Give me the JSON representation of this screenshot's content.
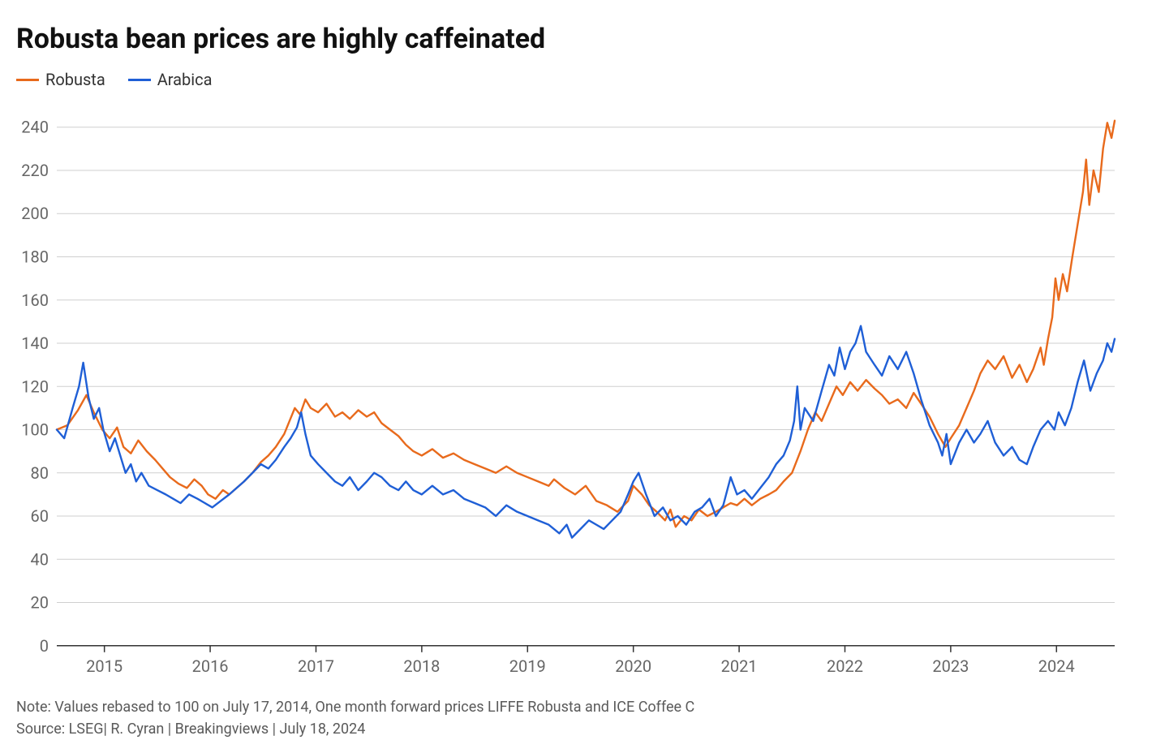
{
  "title": "Robusta bean prices are highly caffeinated",
  "note": "Note: Values rebased to 100 on July 17, 2014, One month forward prices LIFFE Robusta and ICE Coffee C",
  "source": "Source: LSEG| R. Cyran | Breakingviews | July 18, 2024",
  "chart": {
    "type": "line",
    "background_color": "#ffffff",
    "grid_color": "#cfcfcf",
    "axis_color": "#333333",
    "tick_label_color": "#666666",
    "tick_fontsize": 20,
    "title_fontsize": 34,
    "line_width": 2.4,
    "x": {
      "min": 2014.55,
      "max": 2024.55,
      "ticks": [
        2015,
        2016,
        2017,
        2018,
        2019,
        2020,
        2021,
        2022,
        2023,
        2024
      ],
      "tick_labels": [
        "2015",
        "2016",
        "2017",
        "2018",
        "2019",
        "2020",
        "2021",
        "2022",
        "2023",
        "2024"
      ]
    },
    "y": {
      "min": 0,
      "max": 250,
      "ticks": [
        0,
        20,
        40,
        60,
        80,
        100,
        120,
        140,
        160,
        180,
        200,
        220,
        240
      ],
      "tick_labels": [
        "0",
        "20",
        "40",
        "60",
        "80",
        "100",
        "120",
        "140",
        "160",
        "180",
        "200",
        "220",
        "240"
      ]
    },
    "legend": [
      {
        "label": "Robusta",
        "color": "#e86a1c"
      },
      {
        "label": "Arabica",
        "color": "#1f5fd6"
      }
    ],
    "series": [
      {
        "name": "Robusta",
        "color": "#e86a1c",
        "points": [
          [
            2014.55,
            100
          ],
          [
            2014.65,
            102
          ],
          [
            2014.75,
            109
          ],
          [
            2014.83,
            116
          ],
          [
            2014.9,
            108
          ],
          [
            2014.98,
            100
          ],
          [
            2015.05,
            96
          ],
          [
            2015.12,
            101
          ],
          [
            2015.18,
            92
          ],
          [
            2015.25,
            89
          ],
          [
            2015.32,
            95
          ],
          [
            2015.4,
            90
          ],
          [
            2015.48,
            86
          ],
          [
            2015.55,
            82
          ],
          [
            2015.62,
            78
          ],
          [
            2015.7,
            75
          ],
          [
            2015.78,
            73
          ],
          [
            2015.85,
            77
          ],
          [
            2015.92,
            74
          ],
          [
            2015.98,
            70
          ],
          [
            2016.05,
            68
          ],
          [
            2016.12,
            72
          ],
          [
            2016.18,
            70
          ],
          [
            2016.25,
            73
          ],
          [
            2016.32,
            76
          ],
          [
            2016.4,
            80
          ],
          [
            2016.48,
            85
          ],
          [
            2016.55,
            88
          ],
          [
            2016.62,
            92
          ],
          [
            2016.7,
            98
          ],
          [
            2016.75,
            104
          ],
          [
            2016.8,
            110
          ],
          [
            2016.85,
            107
          ],
          [
            2016.9,
            114
          ],
          [
            2016.95,
            110
          ],
          [
            2017.02,
            108
          ],
          [
            2017.1,
            112
          ],
          [
            2017.18,
            106
          ],
          [
            2017.25,
            108
          ],
          [
            2017.32,
            105
          ],
          [
            2017.4,
            109
          ],
          [
            2017.48,
            106
          ],
          [
            2017.55,
            108
          ],
          [
            2017.62,
            103
          ],
          [
            2017.7,
            100
          ],
          [
            2017.78,
            97
          ],
          [
            2017.85,
            93
          ],
          [
            2017.92,
            90
          ],
          [
            2018.0,
            88
          ],
          [
            2018.1,
            91
          ],
          [
            2018.2,
            87
          ],
          [
            2018.3,
            89
          ],
          [
            2018.4,
            86
          ],
          [
            2018.5,
            84
          ],
          [
            2018.6,
            82
          ],
          [
            2018.7,
            80
          ],
          [
            2018.8,
            83
          ],
          [
            2018.9,
            80
          ],
          [
            2019.0,
            78
          ],
          [
            2019.1,
            76
          ],
          [
            2019.2,
            74
          ],
          [
            2019.25,
            77
          ],
          [
            2019.35,
            73
          ],
          [
            2019.45,
            70
          ],
          [
            2019.55,
            74
          ],
          [
            2019.65,
            67
          ],
          [
            2019.75,
            65
          ],
          [
            2019.85,
            62
          ],
          [
            2019.95,
            67
          ],
          [
            2020.0,
            74
          ],
          [
            2020.08,
            70
          ],
          [
            2020.15,
            65
          ],
          [
            2020.22,
            62
          ],
          [
            2020.3,
            58
          ],
          [
            2020.35,
            63
          ],
          [
            2020.4,
            55
          ],
          [
            2020.48,
            60
          ],
          [
            2020.55,
            58
          ],
          [
            2020.62,
            63
          ],
          [
            2020.7,
            60
          ],
          [
            2020.78,
            62
          ],
          [
            2020.85,
            64
          ],
          [
            2020.92,
            66
          ],
          [
            2020.98,
            65
          ],
          [
            2021.05,
            68
          ],
          [
            2021.12,
            65
          ],
          [
            2021.2,
            68
          ],
          [
            2021.28,
            70
          ],
          [
            2021.35,
            72
          ],
          [
            2021.42,
            76
          ],
          [
            2021.5,
            80
          ],
          [
            2021.58,
            90
          ],
          [
            2021.65,
            100
          ],
          [
            2021.72,
            108
          ],
          [
            2021.78,
            104
          ],
          [
            2021.85,
            112
          ],
          [
            2021.92,
            120
          ],
          [
            2021.98,
            116
          ],
          [
            2022.05,
            122
          ],
          [
            2022.12,
            118
          ],
          [
            2022.2,
            123
          ],
          [
            2022.28,
            119
          ],
          [
            2022.35,
            116
          ],
          [
            2022.42,
            112
          ],
          [
            2022.5,
            114
          ],
          [
            2022.58,
            110
          ],
          [
            2022.65,
            117
          ],
          [
            2022.72,
            112
          ],
          [
            2022.8,
            106
          ],
          [
            2022.88,
            98
          ],
          [
            2022.95,
            92
          ],
          [
            2023.0,
            96
          ],
          [
            2023.08,
            102
          ],
          [
            2023.15,
            110
          ],
          [
            2023.22,
            118
          ],
          [
            2023.28,
            126
          ],
          [
            2023.35,
            132
          ],
          [
            2023.42,
            128
          ],
          [
            2023.5,
            134
          ],
          [
            2023.58,
            124
          ],
          [
            2023.65,
            130
          ],
          [
            2023.72,
            122
          ],
          [
            2023.78,
            128
          ],
          [
            2023.85,
            138
          ],
          [
            2023.88,
            130
          ],
          [
            2023.92,
            142
          ],
          [
            2023.96,
            152
          ],
          [
            2023.99,
            170
          ],
          [
            2024.02,
            160
          ],
          [
            2024.06,
            172
          ],
          [
            2024.1,
            164
          ],
          [
            2024.15,
            180
          ],
          [
            2024.2,
            195
          ],
          [
            2024.25,
            210
          ],
          [
            2024.28,
            225
          ],
          [
            2024.31,
            204
          ],
          [
            2024.35,
            220
          ],
          [
            2024.4,
            210
          ],
          [
            2024.44,
            230
          ],
          [
            2024.48,
            242
          ],
          [
            2024.52,
            235
          ],
          [
            2024.55,
            243
          ]
        ]
      },
      {
        "name": "Arabica",
        "color": "#1f5fd6",
        "points": [
          [
            2014.55,
            100
          ],
          [
            2014.62,
            96
          ],
          [
            2014.7,
            110
          ],
          [
            2014.76,
            120
          ],
          [
            2014.8,
            131
          ],
          [
            2014.85,
            115
          ],
          [
            2014.9,
            105
          ],
          [
            2014.95,
            110
          ],
          [
            2014.99,
            100
          ],
          [
            2015.05,
            90
          ],
          [
            2015.1,
            96
          ],
          [
            2015.15,
            88
          ],
          [
            2015.2,
            80
          ],
          [
            2015.25,
            84
          ],
          [
            2015.3,
            76
          ],
          [
            2015.35,
            80
          ],
          [
            2015.42,
            74
          ],
          [
            2015.5,
            72
          ],
          [
            2015.58,
            70
          ],
          [
            2015.65,
            68
          ],
          [
            2015.72,
            66
          ],
          [
            2015.8,
            70
          ],
          [
            2015.88,
            68
          ],
          [
            2015.95,
            66
          ],
          [
            2016.02,
            64
          ],
          [
            2016.1,
            67
          ],
          [
            2016.18,
            70
          ],
          [
            2016.25,
            73
          ],
          [
            2016.32,
            76
          ],
          [
            2016.4,
            80
          ],
          [
            2016.48,
            84
          ],
          [
            2016.55,
            82
          ],
          [
            2016.62,
            86
          ],
          [
            2016.7,
            92
          ],
          [
            2016.76,
            96
          ],
          [
            2016.82,
            101
          ],
          [
            2016.86,
            108
          ],
          [
            2016.9,
            98
          ],
          [
            2016.95,
            88
          ],
          [
            2017.02,
            84
          ],
          [
            2017.1,
            80
          ],
          [
            2017.18,
            76
          ],
          [
            2017.25,
            74
          ],
          [
            2017.32,
            78
          ],
          [
            2017.4,
            72
          ],
          [
            2017.48,
            76
          ],
          [
            2017.55,
            80
          ],
          [
            2017.62,
            78
          ],
          [
            2017.7,
            74
          ],
          [
            2017.78,
            72
          ],
          [
            2017.85,
            76
          ],
          [
            2017.92,
            72
          ],
          [
            2018.0,
            70
          ],
          [
            2018.1,
            74
          ],
          [
            2018.2,
            70
          ],
          [
            2018.3,
            72
          ],
          [
            2018.4,
            68
          ],
          [
            2018.5,
            66
          ],
          [
            2018.6,
            64
          ],
          [
            2018.7,
            60
          ],
          [
            2018.8,
            65
          ],
          [
            2018.9,
            62
          ],
          [
            2019.0,
            60
          ],
          [
            2019.1,
            58
          ],
          [
            2019.2,
            56
          ],
          [
            2019.3,
            52
          ],
          [
            2019.37,
            56
          ],
          [
            2019.42,
            50
          ],
          [
            2019.5,
            54
          ],
          [
            2019.58,
            58
          ],
          [
            2019.65,
            56
          ],
          [
            2019.72,
            54
          ],
          [
            2019.8,
            58
          ],
          [
            2019.88,
            62
          ],
          [
            2019.95,
            70
          ],
          [
            2020.0,
            76
          ],
          [
            2020.05,
            80
          ],
          [
            2020.12,
            70
          ],
          [
            2020.2,
            60
          ],
          [
            2020.28,
            64
          ],
          [
            2020.35,
            58
          ],
          [
            2020.42,
            60
          ],
          [
            2020.5,
            56
          ],
          [
            2020.58,
            62
          ],
          [
            2020.65,
            64
          ],
          [
            2020.72,
            68
          ],
          [
            2020.78,
            60
          ],
          [
            2020.85,
            65
          ],
          [
            2020.92,
            78
          ],
          [
            2020.98,
            70
          ],
          [
            2021.05,
            72
          ],
          [
            2021.12,
            68
          ],
          [
            2021.2,
            73
          ],
          [
            2021.28,
            78
          ],
          [
            2021.35,
            84
          ],
          [
            2021.42,
            88
          ],
          [
            2021.48,
            95
          ],
          [
            2021.52,
            104
          ],
          [
            2021.55,
            120
          ],
          [
            2021.58,
            100
          ],
          [
            2021.62,
            110
          ],
          [
            2021.7,
            104
          ],
          [
            2021.78,
            118
          ],
          [
            2021.85,
            130
          ],
          [
            2021.9,
            125
          ],
          [
            2021.95,
            138
          ],
          [
            2022.0,
            128
          ],
          [
            2022.05,
            136
          ],
          [
            2022.1,
            140
          ],
          [
            2022.15,
            148
          ],
          [
            2022.2,
            136
          ],
          [
            2022.28,
            130
          ],
          [
            2022.35,
            125
          ],
          [
            2022.42,
            134
          ],
          [
            2022.5,
            128
          ],
          [
            2022.58,
            136
          ],
          [
            2022.65,
            126
          ],
          [
            2022.72,
            114
          ],
          [
            2022.8,
            102
          ],
          [
            2022.88,
            94
          ],
          [
            2022.92,
            88
          ],
          [
            2022.96,
            98
          ],
          [
            2023.0,
            84
          ],
          [
            2023.08,
            94
          ],
          [
            2023.15,
            100
          ],
          [
            2023.22,
            94
          ],
          [
            2023.28,
            98
          ],
          [
            2023.35,
            104
          ],
          [
            2023.42,
            94
          ],
          [
            2023.5,
            88
          ],
          [
            2023.58,
            92
          ],
          [
            2023.65,
            86
          ],
          [
            2023.72,
            84
          ],
          [
            2023.78,
            92
          ],
          [
            2023.85,
            100
          ],
          [
            2023.92,
            104
          ],
          [
            2023.98,
            100
          ],
          [
            2024.02,
            108
          ],
          [
            2024.08,
            102
          ],
          [
            2024.14,
            110
          ],
          [
            2024.2,
            122
          ],
          [
            2024.26,
            132
          ],
          [
            2024.32,
            118
          ],
          [
            2024.38,
            126
          ],
          [
            2024.44,
            132
          ],
          [
            2024.48,
            140
          ],
          [
            2024.52,
            136
          ],
          [
            2024.55,
            142
          ]
        ]
      }
    ]
  }
}
